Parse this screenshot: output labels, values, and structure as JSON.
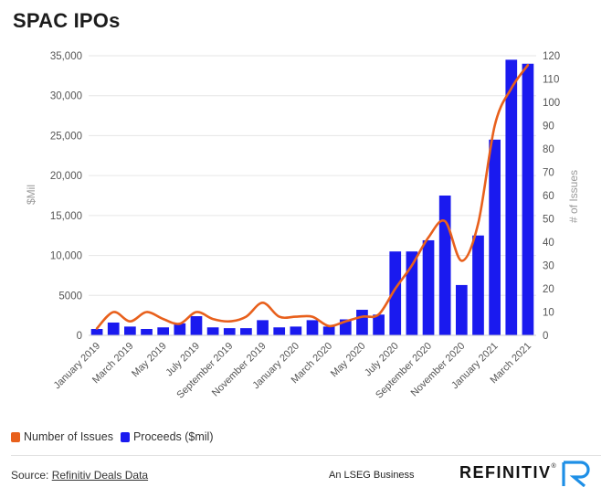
{
  "title": "SPAC IPOs",
  "chart_data": {
    "type": "bar+line",
    "title": "SPAC IPOs",
    "ylabel_left": "$Mil",
    "ylabel_right": "# of Issues",
    "ylim_left": [
      0,
      35000
    ],
    "ylim_right": [
      0,
      120
    ],
    "yticks_left": [
      "35,000",
      "30,000",
      "25,000",
      "20,000",
      "15,000",
      "10,000",
      "5000",
      "0"
    ],
    "yticks_right": [
      "120",
      "110",
      "100",
      "90",
      "80",
      "70",
      "60",
      "50",
      "40",
      "30",
      "20",
      "10",
      "0"
    ],
    "xtick_labels": [
      "January 2019",
      "March 2019",
      "May 2019",
      "July 2019",
      "September 2019",
      "November 2019",
      "January 2020",
      "March 2020",
      "May 2020",
      "July 2020",
      "September 2020",
      "November 2020",
      "January 2021",
      "March 2021"
    ],
    "categories": [
      "Jan 2019",
      "Feb 2019",
      "Mar 2019",
      "Apr 2019",
      "May 2019",
      "Jun 2019",
      "Jul 2019",
      "Aug 2019",
      "Sep 2019",
      "Oct 2019",
      "Nov 2019",
      "Dec 2019",
      "Jan 2020",
      "Feb 2020",
      "Mar 2020",
      "Apr 2020",
      "May 2020",
      "Jun 2020",
      "Jul 2020",
      "Aug 2020",
      "Sep 2020",
      "Oct 2020",
      "Nov 2020",
      "Dec 2020",
      "Jan 2021",
      "Feb 2021",
      "Mar 2021"
    ],
    "series": [
      {
        "name": "Proceeds ($mil)",
        "type": "bar",
        "axis": "left",
        "color": "#1a1aef",
        "values": [
          800,
          1600,
          1100,
          800,
          1000,
          1500,
          2400,
          1000,
          900,
          900,
          1900,
          1000,
          1100,
          1900,
          1100,
          2000,
          3200,
          2600,
          10500,
          10500,
          11900,
          17500,
          6300,
          12500,
          24500,
          34500,
          34000
        ]
      },
      {
        "name": "Number of Issues",
        "type": "line",
        "axis": "right",
        "color": "#e8601c",
        "values": [
          3,
          10,
          6,
          10,
          7,
          5,
          10,
          7,
          6,
          8,
          14,
          8,
          8,
          8,
          4,
          6,
          8,
          9,
          20,
          30,
          42,
          49,
          32,
          48,
          90,
          106,
          116
        ]
      }
    ]
  },
  "legend": {
    "line_label": "Number of Issues",
    "line_color": "#e8601c",
    "bar_label": "Proceeds ($mil)",
    "bar_color": "#1a1aef"
  },
  "footer": {
    "source_prefix": "Source:",
    "source_link": "Refinitiv Deals Data",
    "lseg_text": "An LSEG Business",
    "brand": "REFINITIV",
    "brand_mark": "®"
  }
}
